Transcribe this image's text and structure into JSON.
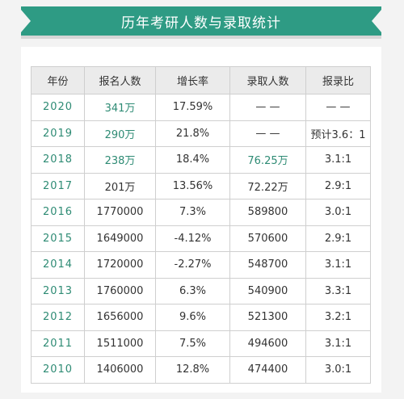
{
  "chart_data": {
    "type": "table",
    "title": "历年考研人数与录取统计",
    "columns": [
      "年份",
      "报名人数",
      "增长率",
      "录取人数",
      "报录比"
    ],
    "rows": [
      [
        "2020",
        "341万",
        "17.59%",
        "— —",
        "— —"
      ],
      [
        "2019",
        "290万",
        "21.8%",
        "— —",
        "预计3.6：1"
      ],
      [
        "2018",
        "238万",
        "18.4%",
        "76.25万",
        "3.1:1"
      ],
      [
        "2017",
        "201万",
        "13.56%",
        "72.22万",
        "2.9:1"
      ],
      [
        "2016",
        "1770000",
        "7.3%",
        "589800",
        "3.0:1"
      ],
      [
        "2015",
        "1649000",
        "-4.12%",
        "570600",
        "2.9:1"
      ],
      [
        "2014",
        "1720000",
        "-2.27%",
        "548700",
        "3.1:1"
      ],
      [
        "2013",
        "1760000",
        "6.3%",
        "540900",
        "3.3:1"
      ],
      [
        "2012",
        "1656000",
        "9.6%",
        "521300",
        "3.2:1"
      ],
      [
        "2011",
        "1511000",
        "7.5%",
        "494600",
        "3.1:1"
      ],
      [
        "2010",
        "1406000",
        "12.8%",
        "474400",
        "3.0:1"
      ]
    ],
    "highlight_color": "#2e8b74",
    "banner_color": "#2e9b84",
    "highlighted_cells": [
      [
        0,
        1
      ],
      [
        1,
        1
      ],
      [
        2,
        1
      ],
      [
        2,
        3
      ]
    ]
  }
}
